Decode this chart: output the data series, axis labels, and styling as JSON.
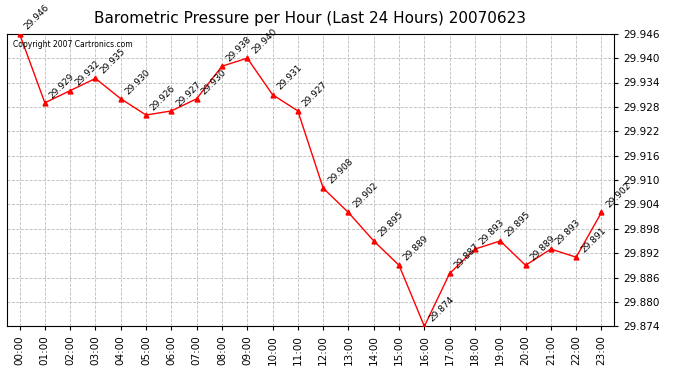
{
  "title": "Barometric Pressure per Hour (Last 24 Hours) 20070623",
  "copyright": "Copyright 2007 Cartronics.com",
  "hours": [
    "00:00",
    "01:00",
    "02:00",
    "03:00",
    "04:00",
    "05:00",
    "06:00",
    "07:00",
    "08:00",
    "09:00",
    "10:00",
    "11:00",
    "12:00",
    "13:00",
    "14:00",
    "15:00",
    "16:00",
    "17:00",
    "18:00",
    "19:00",
    "20:00",
    "21:00",
    "22:00",
    "23:00"
  ],
  "values": [
    29.946,
    29.929,
    29.932,
    29.935,
    29.93,
    29.926,
    29.927,
    29.93,
    29.938,
    29.94,
    29.931,
    29.927,
    29.908,
    29.902,
    29.895,
    29.889,
    29.874,
    29.887,
    29.893,
    29.895,
    29.889,
    29.893,
    29.891,
    29.902
  ],
  "ylim_min": 29.874,
  "ylim_max": 29.946,
  "y_ticks": [
    29.874,
    29.88,
    29.886,
    29.892,
    29.898,
    29.904,
    29.91,
    29.916,
    29.922,
    29.928,
    29.934,
    29.94,
    29.946
  ],
  "line_color": "red",
  "marker_color": "red",
  "marker": "^",
  "bg_color": "#ffffff",
  "grid_color": "#bbbbbb",
  "title_fontsize": 11,
  "annotation_fontsize": 6.5,
  "ytick_fontsize": 7.5,
  "xtick_fontsize": 7.5
}
